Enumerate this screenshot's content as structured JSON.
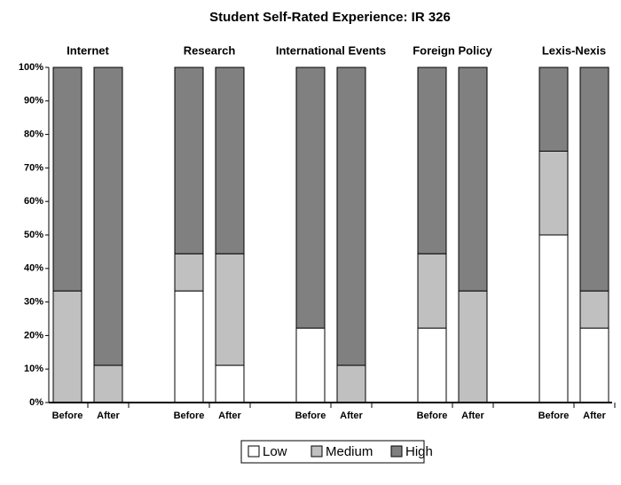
{
  "chart_data": {
    "type": "stacked_bar_100",
    "title": "Student Self-Rated Experience: IR 326",
    "groups": [
      "Internet",
      "Research",
      "International Events",
      "Foreign Policy",
      "Lexis-Nexis"
    ],
    "categories": [
      "Before",
      "After",
      "Before",
      "After",
      "Before",
      "After",
      "Before",
      "After",
      "Before",
      "After"
    ],
    "series": [
      {
        "name": "Low",
        "color": "#ffffff",
        "values": [
          0,
          0,
          33.3,
          11.1,
          22.2,
          0,
          22.2,
          0,
          50,
          22.2
        ]
      },
      {
        "name": "Medium",
        "color": "#c0c0c0",
        "values": [
          33.3,
          11.1,
          11.1,
          33.3,
          0,
          11.1,
          22.2,
          33.3,
          25,
          11.1
        ]
      },
      {
        "name": "High",
        "color": "#808080",
        "values": [
          66.7,
          88.9,
          55.6,
          55.6,
          77.8,
          88.9,
          55.6,
          66.7,
          25,
          66.7
        ]
      }
    ],
    "ylim": [
      0,
      100
    ],
    "yticks": [
      {
        "value": 0,
        "label": "0%"
      },
      {
        "value": 10,
        "label": "10%"
      },
      {
        "value": 20,
        "label": "20%"
      },
      {
        "value": 30,
        "label": "30%"
      },
      {
        "value": 40,
        "label": "40%"
      },
      {
        "value": 50,
        "label": "50%"
      },
      {
        "value": 60,
        "label": "60%"
      },
      {
        "value": 70,
        "label": "70%"
      },
      {
        "value": 80,
        "label": "80%"
      },
      {
        "value": 90,
        "label": "90%"
      },
      {
        "value": 100,
        "label": "100%"
      }
    ],
    "legend": "bottom"
  }
}
